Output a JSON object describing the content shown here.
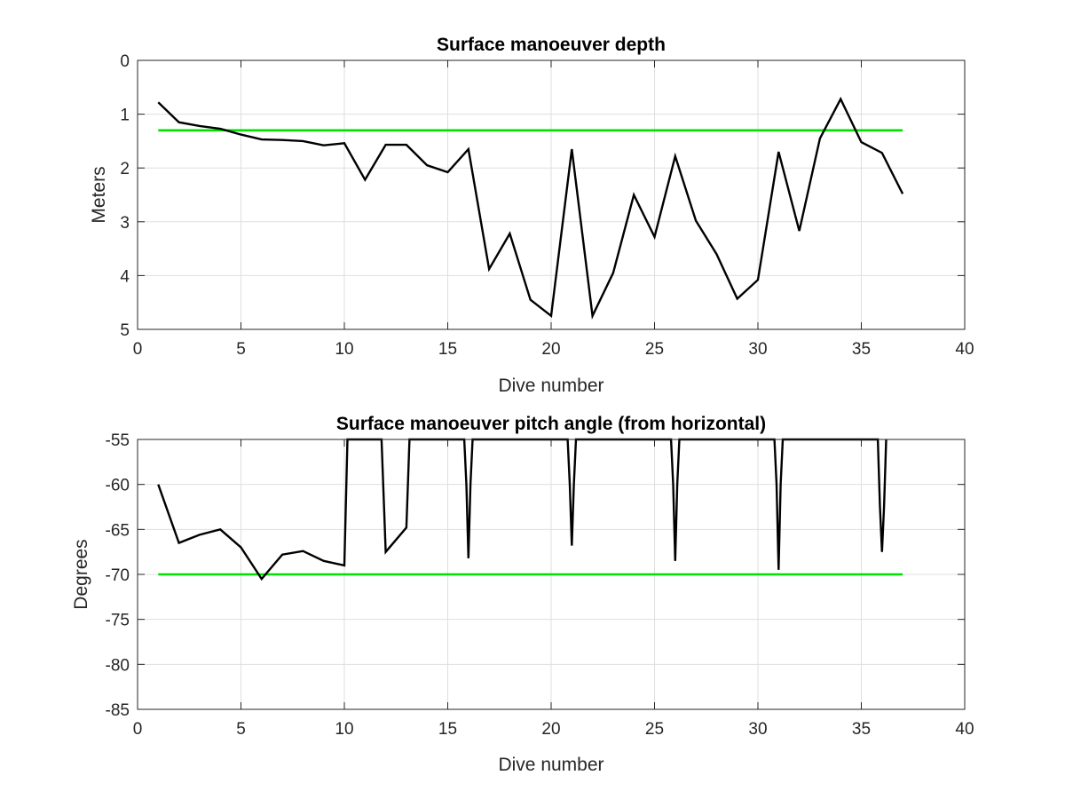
{
  "chart_data": [
    {
      "type": "line",
      "title": "Surface manoeuver depth",
      "xlabel": "Dive number",
      "ylabel": "Meters",
      "xlim": [
        0,
        40
      ],
      "ylim": [
        0,
        5
      ],
      "y_reversed": true,
      "grid": true,
      "xticks": [
        "0",
        "5",
        "10",
        "15",
        "20",
        "25",
        "30",
        "35",
        "40"
      ],
      "yticks": [
        "0",
        "1",
        "2",
        "3",
        "4",
        "5"
      ],
      "colors": {
        "data": "#000000",
        "threshold": "#00e000"
      },
      "series": [
        {
          "role": "data",
          "x": [
            1,
            2,
            3,
            4,
            5,
            6,
            7,
            8,
            9,
            10,
            11,
            12,
            13,
            14,
            15,
            16,
            17,
            18,
            19,
            20,
            21,
            22,
            23,
            24,
            25,
            26,
            27,
            28,
            29,
            30,
            31,
            32,
            33,
            34,
            35,
            36,
            37
          ],
          "y": [
            0.78,
            1.15,
            1.22,
            1.27,
            1.38,
            1.47,
            1.48,
            1.5,
            1.58,
            1.54,
            2.22,
            1.57,
            1.57,
            1.95,
            2.08,
            1.65,
            3.88,
            3.22,
            4.45,
            4.75,
            1.65,
            4.75,
            3.95,
            2.5,
            3.28,
            1.78,
            2.98,
            3.6,
            4.43,
            4.08,
            1.7,
            3.17,
            1.45,
            0.72,
            1.52,
            1.72,
            2.48
          ]
        },
        {
          "role": "threshold",
          "x": [
            1,
            37
          ],
          "y": [
            1.3,
            1.3
          ]
        }
      ]
    },
    {
      "type": "line",
      "title": "Surface manoeuver pitch angle (from horizontal)",
      "xlabel": "Dive number",
      "ylabel": "Degrees",
      "xlim": [
        0,
        40
      ],
      "ylim": [
        -85,
        -55
      ],
      "y_reversed": false,
      "grid": true,
      "xticks": [
        "0",
        "5",
        "10",
        "15",
        "20",
        "25",
        "30",
        "35",
        "40"
      ],
      "yticks": [
        "-55",
        "-60",
        "-65",
        "-70",
        "-75",
        "-80",
        "-85"
      ],
      "colors": {
        "data": "#000000",
        "threshold": "#00e000"
      },
      "series": [
        {
          "role": "data",
          "x": [
            1,
            2,
            3,
            4,
            5,
            6,
            7,
            8,
            9,
            10,
            10.15,
            11.8,
            12,
            13,
            13.15,
            15.8,
            15.9,
            16,
            16.1,
            16.2,
            20.8,
            20.9,
            21,
            21.1,
            21.2,
            25.8,
            25.9,
            26,
            26.1,
            26.2,
            30.8,
            30.9,
            31,
            31.1,
            31.2,
            35.8,
            35.9,
            36,
            36.1,
            36.2
          ],
          "y": [
            -60,
            -66.5,
            -65.6,
            -65,
            -67,
            -70.5,
            -67.8,
            -67.4,
            -68.5,
            -69,
            -55,
            -55,
            -67.5,
            -64.8,
            -55,
            -55,
            -60,
            -68.2,
            -60,
            -55,
            -55,
            -60,
            -66.8,
            -60,
            -55,
            -55,
            -60,
            -68.5,
            -60,
            -55,
            -55,
            -60,
            -69.5,
            -60,
            -55,
            -55,
            -62.5,
            -67.5,
            -62.5,
            -55
          ]
        },
        {
          "role": "threshold",
          "x": [
            1,
            37
          ],
          "y": [
            -70,
            -70
          ]
        }
      ]
    }
  ]
}
